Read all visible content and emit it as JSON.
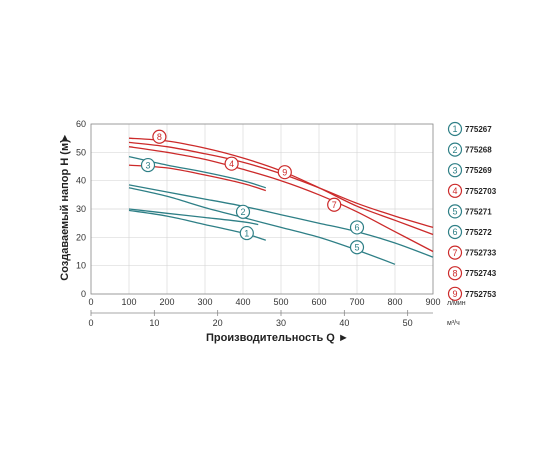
{
  "chart_data": {
    "type": "line",
    "xlabel": "Производительность Q",
    "ylabel": "Создаваемый напор H (м)",
    "x_unit_top": "л/мин",
    "x_unit_bottom": "м³/ч",
    "xlim": [
      0,
      900
    ],
    "ylim": [
      0,
      60
    ],
    "x_ticks_top": [
      0,
      100,
      200,
      300,
      400,
      500,
      600,
      700,
      800,
      900
    ],
    "x_ticks_bottom": [
      0,
      10,
      20,
      30,
      40,
      50
    ],
    "y_ticks": [
      0,
      10,
      20,
      30,
      40,
      50,
      60
    ],
    "grid": true,
    "legend_position": "right",
    "colors": {
      "teal": "#2e7f86",
      "red": "#cc2a2a"
    },
    "series": [
      {
        "marker": "1",
        "name": "775267",
        "color": "#2e7f86",
        "points": [
          [
            100,
            29.5
          ],
          [
            200,
            27.5
          ],
          [
            300,
            24.5
          ],
          [
            400,
            21.5
          ],
          [
            460,
            19
          ]
        ]
      },
      {
        "marker": "2",
        "name": "775268",
        "color": "#2e7f86",
        "points": [
          [
            100,
            30
          ],
          [
            200,
            28.5
          ],
          [
            300,
            27
          ],
          [
            400,
            25.5
          ],
          [
            440,
            24.5
          ]
        ]
      },
      {
        "marker": "3",
        "name": "775269",
        "color": "#2e7f86",
        "points": [
          [
            100,
            48.5
          ],
          [
            200,
            45.5
          ],
          [
            300,
            43
          ],
          [
            400,
            40
          ],
          [
            460,
            37.5
          ]
        ]
      },
      {
        "marker": "4",
        "name": "7752703",
        "color": "#cc2a2a",
        "points": [
          [
            100,
            45.5
          ],
          [
            200,
            44.5
          ],
          [
            300,
            42
          ],
          [
            400,
            39
          ],
          [
            460,
            36.5
          ]
        ]
      },
      {
        "marker": "5",
        "name": "775271",
        "color": "#2e7f86",
        "points": [
          [
            100,
            37.5
          ],
          [
            200,
            34.5
          ],
          [
            300,
            30.5
          ],
          [
            400,
            27
          ],
          [
            500,
            23.5
          ],
          [
            600,
            20
          ],
          [
            700,
            15.5
          ],
          [
            800,
            10.5
          ]
        ]
      },
      {
        "marker": "6",
        "name": "775272",
        "color": "#2e7f86",
        "points": [
          [
            100,
            38.5
          ],
          [
            200,
            36
          ],
          [
            300,
            33.5
          ],
          [
            400,
            31
          ],
          [
            500,
            28
          ],
          [
            600,
            25
          ],
          [
            700,
            22
          ],
          [
            800,
            18
          ],
          [
            900,
            13
          ]
        ]
      },
      {
        "marker": "7",
        "name": "7752733",
        "color": "#cc2a2a",
        "points": [
          [
            100,
            52
          ],
          [
            200,
            50
          ],
          [
            300,
            47.5
          ],
          [
            400,
            44
          ],
          [
            500,
            40
          ],
          [
            600,
            35
          ],
          [
            700,
            29
          ],
          [
            800,
            22
          ],
          [
            900,
            15
          ]
        ]
      },
      {
        "marker": "8",
        "name": "7752743",
        "color": "#cc2a2a",
        "points": [
          [
            100,
            55
          ],
          [
            200,
            54
          ],
          [
            300,
            51.5
          ],
          [
            400,
            48
          ],
          [
            500,
            43.5
          ],
          [
            600,
            37.5
          ],
          [
            700,
            31
          ],
          [
            800,
            26
          ],
          [
            900,
            21
          ]
        ]
      },
      {
        "marker": "9",
        "name": "7752753",
        "color": "#cc2a2a",
        "points": [
          [
            100,
            53.5
          ],
          [
            200,
            52
          ],
          [
            300,
            49.5
          ],
          [
            400,
            46.5
          ],
          [
            500,
            42.5
          ],
          [
            600,
            37.5
          ],
          [
            700,
            32
          ],
          [
            800,
            27.5
          ],
          [
            900,
            23.5
          ]
        ]
      }
    ],
    "curve_markers": [
      {
        "label": "1",
        "x": 410,
        "y": 21.5,
        "color": "#2e7f86"
      },
      {
        "label": "2",
        "x": 400,
        "y": 29,
        "color": "#2e7f86"
      },
      {
        "label": "3",
        "x": 150,
        "y": 45.5,
        "color": "#2e7f86"
      },
      {
        "label": "4",
        "x": 370,
        "y": 46,
        "color": "#cc2a2a"
      },
      {
        "label": "5",
        "x": 700,
        "y": 16.5,
        "color": "#2e7f86"
      },
      {
        "label": "6",
        "x": 700,
        "y": 23.5,
        "color": "#2e7f86"
      },
      {
        "label": "7",
        "x": 640,
        "y": 31.5,
        "color": "#cc2a2a"
      },
      {
        "label": "8",
        "x": 180,
        "y": 55.5,
        "color": "#cc2a2a"
      },
      {
        "label": "9",
        "x": 510,
        "y": 43,
        "color": "#cc2a2a"
      }
    ]
  }
}
